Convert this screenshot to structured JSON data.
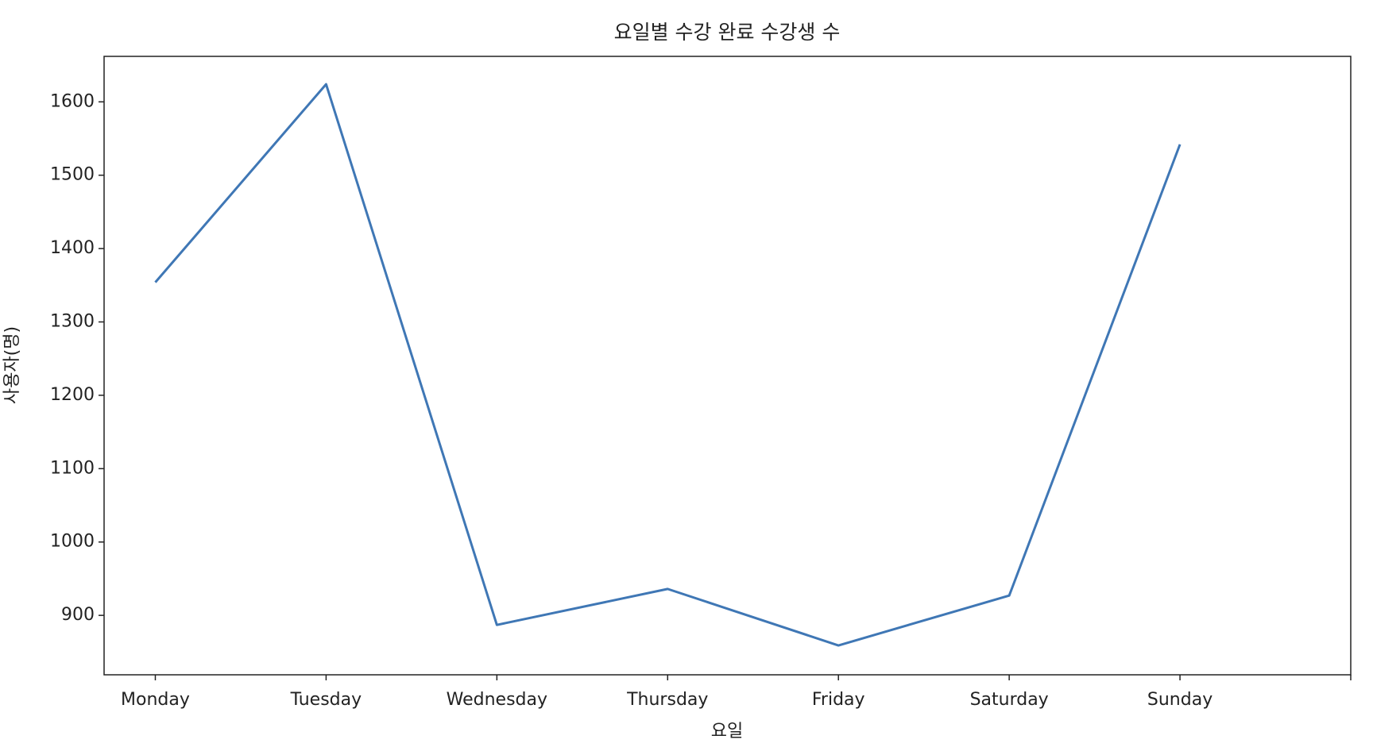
{
  "chart_data": {
    "type": "line",
    "title": "요일별 수강 완료 수강생 수",
    "xlabel": "요일",
    "ylabel": "사용자(명)",
    "categories": [
      "Monday",
      "Tuesday",
      "Wednesday",
      "Thursday",
      "Friday",
      "Saturday",
      "Sunday",
      null
    ],
    "series": [
      {
        "name": "수강생 수",
        "color": "#3f77b5",
        "values": [
          1354,
          1624,
          887,
          936,
          859,
          927,
          1542,
          null
        ]
      }
    ],
    "ylim": [
      819,
      1662
    ],
    "yticks": [
      900,
      1000,
      1100,
      1200,
      1300,
      1400,
      1500,
      1600
    ],
    "grid": false,
    "legend": false
  }
}
